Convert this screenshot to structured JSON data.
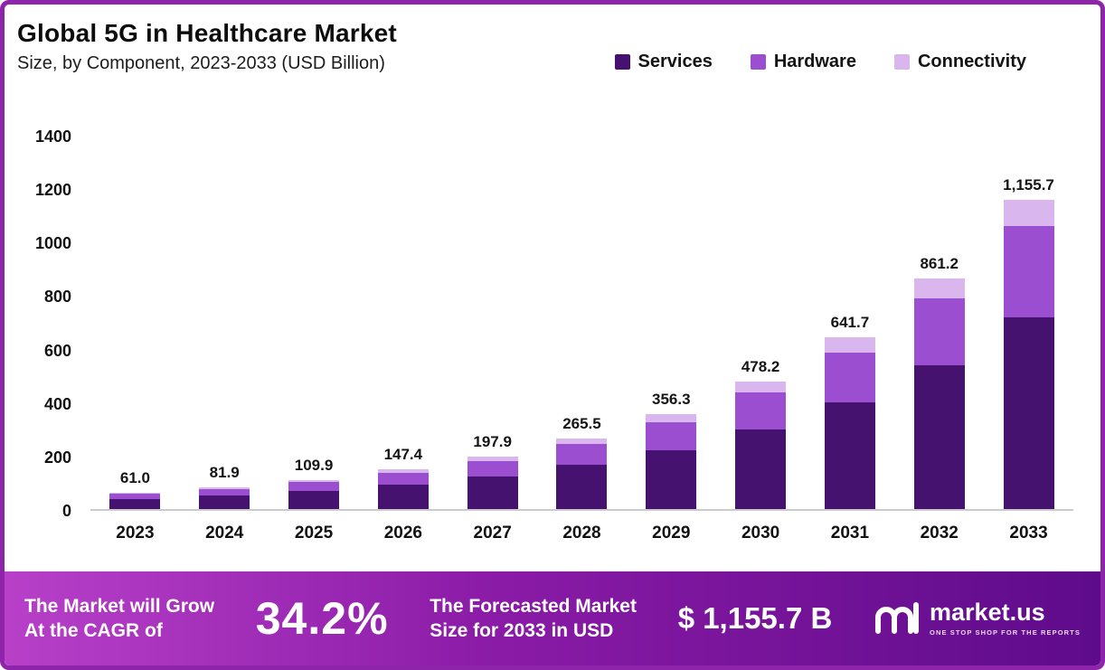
{
  "colors": {
    "frame_border": "#8e24aa",
    "banner_gradient_left": "#b840c9",
    "banner_gradient_mid": "#8a1ba6",
    "banner_gradient_right": "#5e0b8b",
    "axis_line": "#cbcbcb"
  },
  "chart_data": {
    "type": "bar",
    "stacked": true,
    "title": "Global 5G in Healthcare Market",
    "subtitle": "Size, by Component, 2023-2033 (USD Billion)",
    "categories": [
      "2023",
      "2024",
      "2025",
      "2026",
      "2027",
      "2028",
      "2029",
      "2030",
      "2031",
      "2032",
      "2033"
    ],
    "totals": [
      61.0,
      81.9,
      109.9,
      147.4,
      197.9,
      265.5,
      356.3,
      478.2,
      641.7,
      861.2,
      1155.7
    ],
    "total_labels": [
      "61.0",
      "81.9",
      "109.9",
      "147.4",
      "197.9",
      "265.5",
      "356.3",
      "478.2",
      "641.7",
      "861.2",
      "1,155.7"
    ],
    "series": [
      {
        "name": "Services",
        "color": "#45136f",
        "values": [
          38,
          51,
          68,
          92,
          123,
          165,
          221,
          296,
          398,
          537,
          718
        ]
      },
      {
        "name": "Hardware",
        "color": "#9b4fd0",
        "values": [
          18,
          24,
          32,
          43,
          58,
          78,
          104,
          139,
          188,
          252,
          340
        ]
      },
      {
        "name": "Connectivity",
        "color": "#d9b6ee",
        "values": [
          5.0,
          6.9,
          9.9,
          12.4,
          16.9,
          22.5,
          31.3,
          43.2,
          55.7,
          72.2,
          97.7
        ]
      }
    ],
    "ylim": [
      0,
      1400
    ],
    "yticks": [
      0,
      200,
      400,
      600,
      800,
      1000,
      1200,
      1400
    ],
    "legend_position": "top-right",
    "grid": false
  },
  "banner": {
    "cagr_label": "The Market will Grow\nAt the CAGR of",
    "cagr_value": "34.2%",
    "forecast_label": "The Forecasted Market\nSize for 2033 in USD",
    "forecast_value": "$ 1,155.7 B",
    "logo_text": "market.us",
    "logo_tagline": "ONE STOP SHOP FOR THE REPORTS"
  }
}
